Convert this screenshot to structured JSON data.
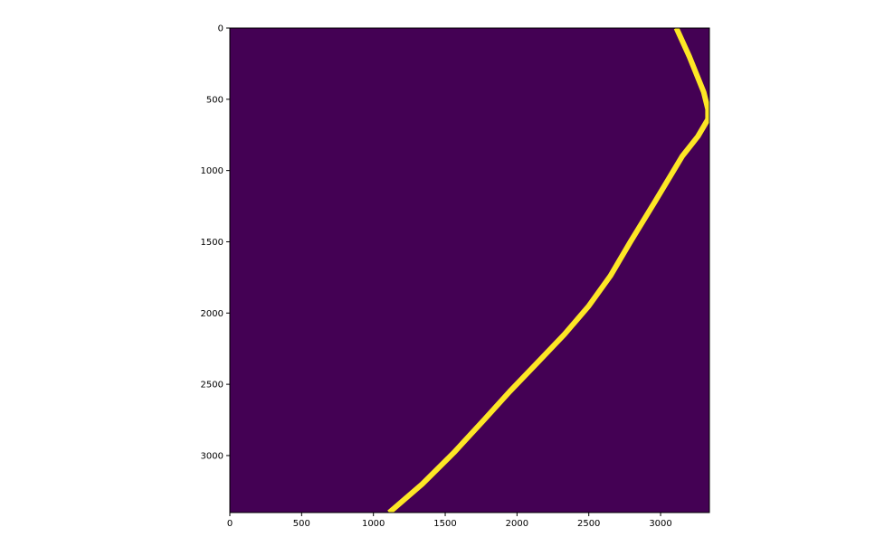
{
  "chart_data": {
    "type": "heatmap",
    "title": "",
    "xlabel": "",
    "ylabel": "",
    "xlim": [
      0,
      3340
    ],
    "ylim": [
      3400,
      0
    ],
    "x_ticks": [
      0,
      500,
      1000,
      1500,
      2000,
      2500,
      3000
    ],
    "y_ticks": [
      0,
      500,
      1000,
      1500,
      2000,
      2500,
      3000
    ],
    "grid": false,
    "colormap": "viridis",
    "colors": {
      "background": "#440154",
      "line": "#fde725"
    },
    "line": {
      "x": [
        3110,
        3200,
        3300,
        3330,
        3330,
        3260,
        3150,
        2960,
        2790,
        2650,
        2500,
        2330,
        2140,
        1950,
        1770,
        1560,
        1340,
        1110
      ],
      "y": [
        0,
        200,
        450,
        570,
        640,
        760,
        900,
        1220,
        1500,
        1740,
        1950,
        2150,
        2350,
        2550,
        2750,
        2980,
        3200,
        3400
      ]
    }
  }
}
